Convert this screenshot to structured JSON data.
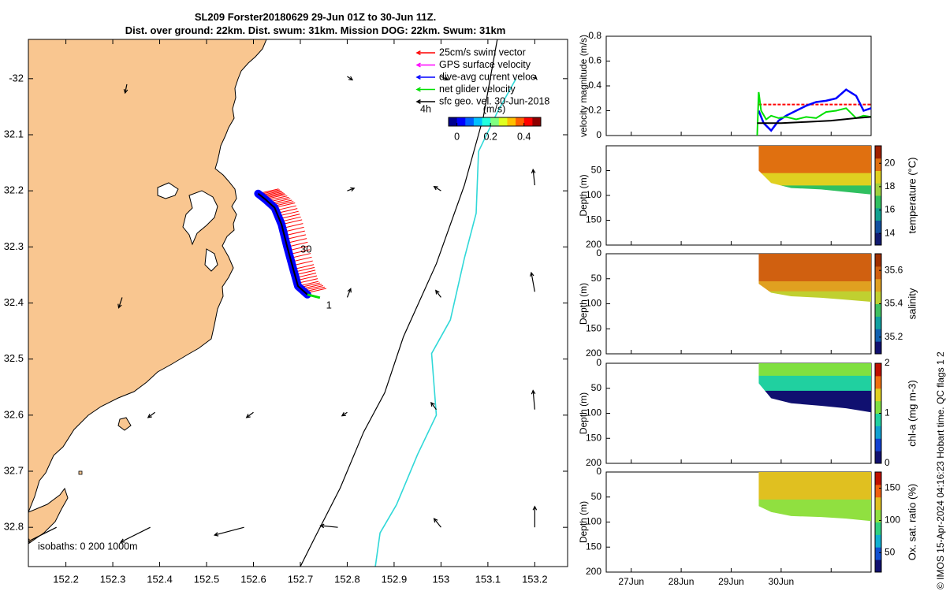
{
  "title": {
    "line1": "SL209 Forster20180629 29-Jun 01Z to 30-Jun 11Z.",
    "line2": "Dist. over ground: 22km. Dist. swum: 31km. Mission DOG: 22km. Swum: 31km"
  },
  "credit": "© IMOS 15-Apr-2024 04:16:23 Hobart time. QC flags 1  2",
  "colors": {
    "land": "#f9c690",
    "isobath_200": "#000000",
    "isobath_1000": "#30d8d8",
    "swim": "#ff0000",
    "gps": "#ff00ff",
    "dive_avg": "#0000ff",
    "net": "#00e000",
    "geo": "#000000"
  },
  "chart_data": [
    {
      "type": "scatter",
      "name": "map",
      "xlim": [
        152.12,
        153.27
      ],
      "ylim": [
        -32.87,
        -31.93
      ],
      "xticks": [
        152.2,
        152.3,
        152.4,
        152.5,
        152.6,
        152.7,
        152.8,
        152.9,
        153,
        153.1,
        153.2
      ],
      "xticklabels": [
        "152.2",
        "152.3",
        "152.4",
        "152.5",
        "152.6",
        "152.7",
        "152.8",
        "152.9",
        "153",
        "153.1",
        "153.2"
      ],
      "yticks": [
        -32,
        -32.1,
        -32.2,
        -32.3,
        -32.4,
        -32.5,
        -32.6,
        -32.7,
        -32.8
      ],
      "yticklabels": [
        "-32",
        "32.1",
        "32.2",
        "32.3",
        "32.4",
        "32.5",
        "32.6",
        "32.7",
        "32.8"
      ],
      "legend": {
        "placement": "top-right",
        "entries": [
          {
            "label": "25cm/s swim vector",
            "color": "#ff0000"
          },
          {
            "label": "GPS surface velocity",
            "color": "#ff00ff"
          },
          {
            "label": "dive-avg current veloc.",
            "color": "#0000ff"
          },
          {
            "label": "net glider velocity",
            "color": "#00e000"
          },
          {
            "label": "sfc geo. vel. 30-Jun-2018",
            "color": "#000000"
          }
        ]
      },
      "speed_colorbar": {
        "label_left": "4h",
        "label": "(m/s)",
        "ticks": [
          0,
          0.2,
          0.4
        ],
        "ticklabels": [
          "0",
          "0.2",
          "0.4"
        ],
        "range": [
          -0.05,
          0.5
        ]
      },
      "isobath_label": "isobaths: 0   200  1000m",
      "annotations": [
        {
          "text": "30",
          "x": 152.7,
          "y": -32.305
        },
        {
          "text": "1",
          "x": 152.755,
          "y": -32.405
        }
      ],
      "isobath_200": [
        [
          152.7,
          -32.87
        ],
        [
          152.73,
          -32.82
        ],
        [
          152.785,
          -32.73
        ],
        [
          152.835,
          -32.63
        ],
        [
          152.88,
          -32.56
        ],
        [
          152.92,
          -32.46
        ],
        [
          152.99,
          -32.33
        ],
        [
          153.05,
          -32.19
        ],
        [
          153.09,
          -32.07
        ],
        [
          153.12,
          -31.93
        ]
      ],
      "isobath_1000": [
        [
          152.86,
          -32.87
        ],
        [
          152.87,
          -32.81
        ],
        [
          152.905,
          -32.76
        ],
        [
          152.95,
          -32.67
        ],
        [
          152.99,
          -32.6
        ],
        [
          152.98,
          -32.49
        ],
        [
          153.02,
          -32.43
        ],
        [
          153.05,
          -32.32
        ],
        [
          153.075,
          -32.24
        ],
        [
          153.08,
          -32.13
        ],
        [
          153.12,
          -32.06
        ],
        [
          153.16,
          -32.0
        ]
      ],
      "glider_track": [
        [
          152.61,
          -32.205
        ],
        [
          152.625,
          -32.215
        ],
        [
          152.645,
          -32.23
        ],
        [
          152.66,
          -32.26
        ],
        [
          152.672,
          -32.3
        ],
        [
          152.685,
          -32.34
        ],
        [
          152.695,
          -32.37
        ],
        [
          152.715,
          -32.385
        ]
      ],
      "geo_vectors": [
        {
          "x": 152.33,
          "y": -32.01,
          "u": -0.02,
          "v": -0.1
        },
        {
          "x": 152.8,
          "y": -31.996,
          "u": 0.06,
          "v": -0.04
        },
        {
          "x": 153.0,
          "y": -31.996,
          "u": 0.08,
          "v": -0.04
        },
        {
          "x": 153.2,
          "y": -31.997,
          "u": 0.02,
          "v": -0.02
        },
        {
          "x": 152.8,
          "y": -32.2,
          "u": 0.08,
          "v": 0.03
        },
        {
          "x": 153.0,
          "y": -32.2,
          "u": -0.08,
          "v": 0.05
        },
        {
          "x": 153.2,
          "y": -32.19,
          "u": -0.02,
          "v": 0.18
        },
        {
          "x": 152.32,
          "y": -32.39,
          "u": -0.04,
          "v": -0.12
        },
        {
          "x": 152.8,
          "y": -32.39,
          "u": 0.04,
          "v": 0.1
        },
        {
          "x": 153.0,
          "y": -32.39,
          "u": -0.06,
          "v": 0.08
        },
        {
          "x": 153.2,
          "y": -32.38,
          "u": -0.04,
          "v": 0.22
        },
        {
          "x": 152.39,
          "y": -32.595,
          "u": -0.08,
          "v": -0.06
        },
        {
          "x": 152.6,
          "y": -32.595,
          "u": -0.08,
          "v": -0.06
        },
        {
          "x": 152.8,
          "y": -32.595,
          "u": -0.06,
          "v": -0.04
        },
        {
          "x": 152.99,
          "y": -32.59,
          "u": -0.06,
          "v": 0.08
        },
        {
          "x": 153.2,
          "y": -32.59,
          "u": -0.02,
          "v": 0.22
        },
        {
          "x": 152.18,
          "y": -32.8,
          "u": -0.34,
          "v": -0.17
        },
        {
          "x": 152.38,
          "y": -32.8,
          "u": -0.34,
          "v": -0.17
        },
        {
          "x": 152.58,
          "y": -32.8,
          "u": -0.34,
          "v": -0.09
        },
        {
          "x": 152.78,
          "y": -32.8,
          "u": -0.2,
          "v": 0.02
        },
        {
          "x": 153.0,
          "y": -32.8,
          "u": -0.08,
          "v": 0.1
        },
        {
          "x": 153.2,
          "y": -32.8,
          "u": 0.0,
          "v": 0.24
        }
      ]
    },
    {
      "type": "line",
      "name": "velocity_magnitude",
      "ylabel": "velocity magnitude (m/s)",
      "xlim": [
        0,
        5.3
      ],
      "ylim": [
        0,
        0.8
      ],
      "yticks": [
        0,
        0.2,
        0.4,
        0.6,
        0.8
      ],
      "yticklabels": [
        "0",
        "0.2",
        "0.4",
        "0.6",
        "0.8"
      ],
      "xticks": [
        0.5,
        1.5,
        2.5,
        3.5,
        4.5
      ],
      "series": [
        {
          "color": "#ff0000",
          "dashed": true,
          "x": [
            3.05,
            3.4,
            3.8,
            4.2,
            4.6,
            5.0,
            5.3
          ],
          "y": [
            0.25,
            0.25,
            0.25,
            0.25,
            0.25,
            0.25,
            0.25
          ]
        },
        {
          "color": "#0000ff",
          "x": [
            3.05,
            3.15,
            3.3,
            3.45,
            3.6,
            3.8,
            4.0,
            4.2,
            4.4,
            4.6,
            4.8,
            5.0,
            5.15,
            5.3
          ],
          "y": [
            0.2,
            0.1,
            0.04,
            0.12,
            0.16,
            0.2,
            0.24,
            0.27,
            0.28,
            0.3,
            0.37,
            0.32,
            0.2,
            0.22
          ]
        },
        {
          "color": "#00e000",
          "x": [
            3.02,
            3.05,
            3.1,
            3.2,
            3.3,
            3.45,
            3.6,
            3.8,
            4.0,
            4.2,
            4.4,
            4.6,
            4.8,
            5.0,
            5.15,
            5.3
          ],
          "y": [
            0.0,
            0.35,
            0.2,
            0.13,
            0.16,
            0.14,
            0.15,
            0.13,
            0.15,
            0.14,
            0.19,
            0.2,
            0.22,
            0.14,
            0.16,
            0.15
          ]
        },
        {
          "color": "#000000",
          "x": [
            3.02,
            3.5,
            4.0,
            4.5,
            5.0,
            5.3
          ],
          "y": [
            0.1,
            0.1,
            0.11,
            0.12,
            0.14,
            0.15
          ]
        }
      ]
    },
    {
      "type": "heatmap",
      "name": "temperature",
      "ylabel": "Depth (m)",
      "colorbar_label": "temperature (°C)",
      "ylim": [
        0,
        200
      ],
      "yticks": [
        0,
        50,
        100,
        150,
        200
      ],
      "yticklabels": [
        "",
        "50",
        "100",
        "150",
        "200"
      ],
      "cticks": [
        14,
        16,
        18,
        20
      ],
      "cticklabels": [
        "14",
        "16",
        "18",
        "20"
      ],
      "clim": [
        13,
        21.5
      ],
      "colormap": "thermal",
      "bottom_depth": [
        [
          3.05,
          50
        ],
        [
          3.3,
          75
        ],
        [
          3.7,
          85
        ],
        [
          4.3,
          88
        ],
        [
          4.8,
          93
        ],
        [
          5.3,
          98
        ]
      ],
      "layers": [
        {
          "from": 0,
          "to": 55,
          "value": 19.8
        },
        {
          "from": 55,
          "to": 80,
          "value": 18.8
        },
        {
          "from": 80,
          "to": 100,
          "value": 17.2
        }
      ]
    },
    {
      "type": "heatmap",
      "name": "salinity",
      "ylabel": "Depth (m)",
      "colorbar_label": "salinity",
      "ylim": [
        0,
        200
      ],
      "yticks": [
        0,
        50,
        100,
        150,
        200
      ],
      "yticklabels": [
        "0",
        "50",
        "100",
        "150",
        "200"
      ],
      "cticks": [
        35.2,
        35.4,
        35.6
      ],
      "cticklabels": [
        "35.2",
        "35.4",
        "35.6"
      ],
      "clim": [
        35.1,
        35.7
      ],
      "colormap": "haline",
      "bottom_depth": [
        [
          3.05,
          60
        ],
        [
          3.3,
          78
        ],
        [
          3.7,
          85
        ],
        [
          4.3,
          88
        ],
        [
          4.8,
          92
        ],
        [
          5.3,
          96
        ]
      ],
      "layers": [
        {
          "from": 0,
          "to": 55,
          "value": 35.62
        },
        {
          "from": 55,
          "to": 75,
          "value": 35.52
        },
        {
          "from": 75,
          "to": 100,
          "value": 35.42
        }
      ]
    },
    {
      "type": "heatmap",
      "name": "chl-a",
      "ylabel": "Depth (m)",
      "colorbar_label": "chl-a (mg m-3)",
      "ylim": [
        0,
        200
      ],
      "yticks": [
        0,
        50,
        100,
        150,
        200
      ],
      "yticklabels": [
        "0",
        "50",
        "100",
        "150",
        "200"
      ],
      "cticks": [
        0,
        1,
        2
      ],
      "cticklabels": [
        "0",
        "1",
        "2"
      ],
      "clim": [
        0,
        2
      ],
      "colormap": "chl",
      "bottom_depth": [
        [
          3.05,
          40
        ],
        [
          3.3,
          70
        ],
        [
          3.7,
          80
        ],
        [
          4.3,
          85
        ],
        [
          4.8,
          90
        ],
        [
          5.3,
          98
        ]
      ],
      "layers": [
        {
          "from": 0,
          "to": 25,
          "value": 1.05
        },
        {
          "from": 25,
          "to": 55,
          "value": 0.75
        },
        {
          "from": 55,
          "to": 100,
          "value": 0.2
        }
      ]
    },
    {
      "type": "heatmap",
      "name": "oxygen",
      "ylabel": "Depth (m)",
      "colorbar_label": "Ox. sat. ratio (%)",
      "ylim": [
        0,
        200
      ],
      "yticks": [
        0,
        50,
        100,
        150,
        200
      ],
      "yticklabels": [
        "0",
        "50",
        "100",
        "150",
        "200"
      ],
      "cticks": [
        50,
        100,
        150
      ],
      "cticklabels": [
        "50",
        "100",
        "150"
      ],
      "clim": [
        20,
        175
      ],
      "colormap": "oxy",
      "bottom_depth": [
        [
          3.05,
          68
        ],
        [
          3.3,
          80
        ],
        [
          3.7,
          88
        ],
        [
          4.3,
          90
        ],
        [
          4.8,
          93
        ],
        [
          5.3,
          98
        ]
      ],
      "layers": [
        {
          "from": 0,
          "to": 55,
          "value": 120
        },
        {
          "from": 55,
          "to": 80,
          "value": 110
        },
        {
          "from": 80,
          "to": 100,
          "value": 100
        }
      ],
      "xticklabels": [
        "27Jun",
        "28Jun",
        "29Jun",
        "30Jun"
      ],
      "xticks": [
        0.5,
        1.5,
        2.5,
        3.5
      ]
    }
  ]
}
